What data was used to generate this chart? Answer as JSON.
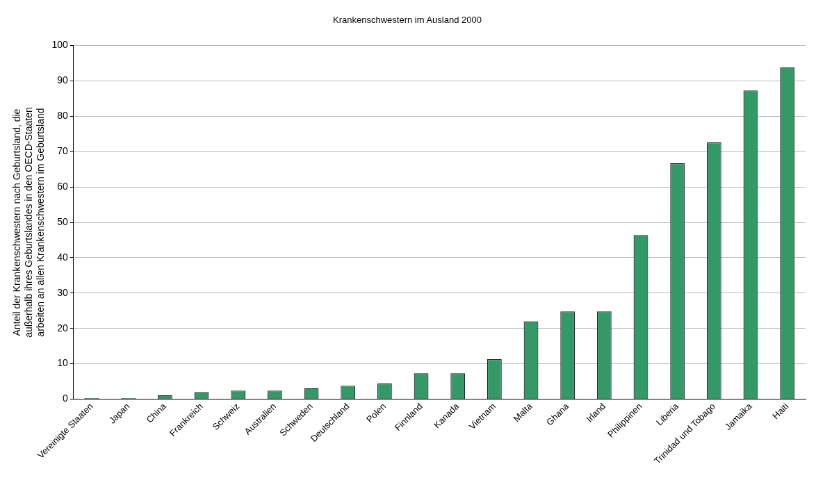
{
  "chart_data": {
    "type": "bar",
    "title": "Krankenschwestern im Ausland 2000",
    "ylabel": [
      "Anteil der Krankenschwestern nach Geburtsland, die",
      "außerhalb ihres Geburtslandes in den OECD-Staaten",
      "arbeiten an allen Krankenschwestern im Geburtsland"
    ],
    "categories": [
      "Vereinigte Staaten",
      "Japan",
      "China",
      "Frankreich",
      "Schweiz",
      "Australien",
      "Schweden",
      "Deutschland",
      "Polen",
      "Finnland",
      "Kanada",
      "Vietnam",
      "Malta",
      "Ghana",
      "Irland",
      "Philippinen",
      "Liberia",
      "Trinidad und Tobago",
      "Jamaika",
      "Haiti"
    ],
    "values": [
      0.3,
      0.3,
      1.1,
      2.0,
      2.4,
      2.4,
      3.1,
      3.8,
      4.4,
      7.3,
      7.3,
      11.3,
      22.0,
      24.8,
      24.8,
      46.4,
      66.7,
      72.6,
      87.3,
      93.9
    ],
    "color": "#339966",
    "ylim": [
      0,
      100
    ],
    "yticks": [
      0,
      10,
      20,
      30,
      40,
      50,
      60,
      70,
      80,
      90,
      100
    ],
    "grid": "y",
    "legend": false
  }
}
